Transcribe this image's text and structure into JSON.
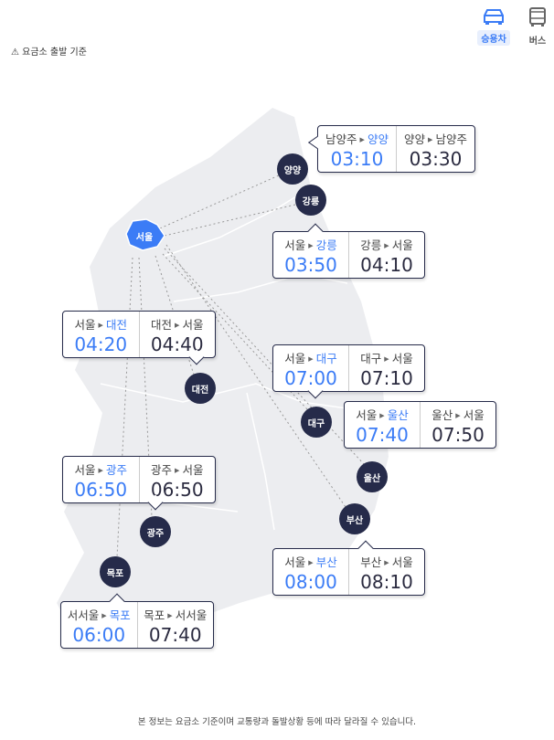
{
  "vehicle_tabs": [
    {
      "label": "승용차",
      "icon": "car-icon",
      "active": true
    },
    {
      "label": "버스",
      "icon": "bus-icon",
      "active": false
    }
  ],
  "notice": "요금소 출발 기준",
  "arrow": "▶",
  "colors": {
    "accent": "#3b7cf6",
    "marker": "#262b4a",
    "map": "#ecedf0"
  },
  "cities": {
    "seoul": "서울",
    "yangyang": "양양",
    "gangneung": "강릉",
    "daejeon": "대전",
    "daegu": "대구",
    "ulsan": "울산",
    "busan": "부산",
    "gwangju": "광주",
    "mokpo": "목포"
  },
  "routes": [
    {
      "out_from": "남양주",
      "out_to": "양양",
      "out_time": "03:10",
      "in_from": "양양",
      "in_to": "남양주",
      "in_time": "03:30"
    },
    {
      "out_from": "서울",
      "out_to": "강릉",
      "out_time": "03:50",
      "in_from": "강릉",
      "in_to": "서울",
      "in_time": "04:10"
    },
    {
      "out_from": "서울",
      "out_to": "대전",
      "out_time": "04:20",
      "in_from": "대전",
      "in_to": "서울",
      "in_time": "04:40"
    },
    {
      "out_from": "서울",
      "out_to": "대구",
      "out_time": "07:00",
      "in_from": "대구",
      "in_to": "서울",
      "in_time": "07:10"
    },
    {
      "out_from": "서울",
      "out_to": "울산",
      "out_time": "07:40",
      "in_from": "울산",
      "in_to": "서울",
      "in_time": "07:50"
    },
    {
      "out_from": "서울",
      "out_to": "광주",
      "out_time": "06:50",
      "in_from": "광주",
      "in_to": "서울",
      "in_time": "06:50"
    },
    {
      "out_from": "서울",
      "out_to": "부산",
      "out_time": "08:00",
      "in_from": "부산",
      "in_to": "서울",
      "in_time": "08:10"
    },
    {
      "out_from": "서서울",
      "out_to": "목포",
      "out_time": "06:00",
      "in_from": "목포",
      "in_to": "서서울",
      "in_time": "07:40"
    }
  ],
  "footer": "본 정보는 요금소 기준이며 교통량과 돌발상황 등에 따라 달라질 수 있습니다."
}
